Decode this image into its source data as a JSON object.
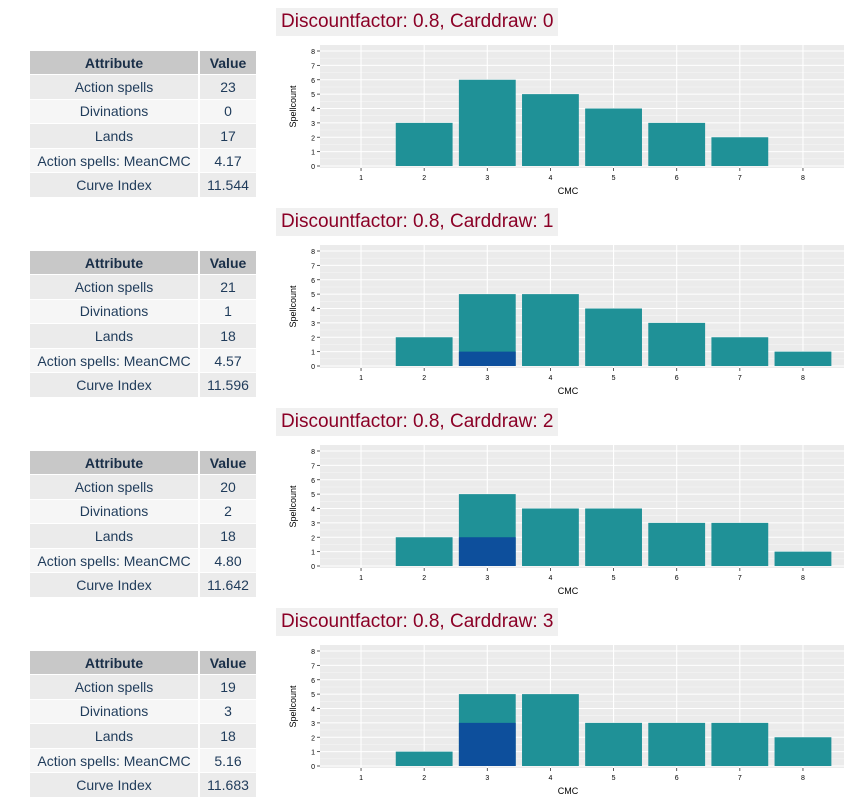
{
  "table_headers": {
    "attribute": "Attribute",
    "value": "Value"
  },
  "colors": {
    "total": "#1f9197",
    "carddraw": "#0d4f9c",
    "title": "#8b0026",
    "panel_bg": "#ebebeb"
  },
  "chart_data": [
    {
      "type": "bar",
      "title": "Discountfactor: 0.8, Carddraw: 0",
      "xlabel": "CMC",
      "ylabel": "Spellcount",
      "categories": [
        "1",
        "2",
        "3",
        "4",
        "5",
        "6",
        "7",
        "8"
      ],
      "ylim": [
        0,
        8
      ],
      "yticks": [
        "0",
        "1",
        "2",
        "3",
        "4",
        "5",
        "6",
        "7",
        "8"
      ],
      "series": [
        {
          "values": [
            0,
            3,
            6,
            5,
            4,
            3,
            2,
            0
          ]
        },
        {
          "values": [
            0,
            0,
            0,
            0,
            0,
            0,
            0,
            0
          ]
        }
      ],
      "table": [
        {
          "attribute": "Action spells",
          "value": "23"
        },
        {
          "attribute": "Divinations",
          "value": "0"
        },
        {
          "attribute": "Lands",
          "value": "17"
        },
        {
          "attribute": "Action spells: MeanCMC",
          "value": "4.17"
        },
        {
          "attribute": "Curve Index",
          "value": "11.544"
        }
      ]
    },
    {
      "type": "bar",
      "title": "Discountfactor: 0.8, Carddraw: 1",
      "xlabel": "CMC",
      "ylabel": "Spellcount",
      "categories": [
        "1",
        "2",
        "3",
        "4",
        "5",
        "6",
        "7",
        "8"
      ],
      "ylim": [
        0,
        8
      ],
      "yticks": [
        "0",
        "1",
        "2",
        "3",
        "4",
        "5",
        "6",
        "7",
        "8"
      ],
      "series": [
        {
          "values": [
            0,
            2,
            5,
            5,
            4,
            3,
            2,
            1
          ]
        },
        {
          "values": [
            0,
            0,
            1,
            0,
            0,
            0,
            0,
            0
          ]
        }
      ],
      "table": [
        {
          "attribute": "Action spells",
          "value": "21"
        },
        {
          "attribute": "Divinations",
          "value": "1"
        },
        {
          "attribute": "Lands",
          "value": "18"
        },
        {
          "attribute": "Action spells: MeanCMC",
          "value": "4.57"
        },
        {
          "attribute": "Curve Index",
          "value": "11.596"
        }
      ]
    },
    {
      "type": "bar",
      "title": "Discountfactor: 0.8, Carddraw: 2",
      "xlabel": "CMC",
      "ylabel": "Spellcount",
      "categories": [
        "1",
        "2",
        "3",
        "4",
        "5",
        "6",
        "7",
        "8"
      ],
      "ylim": [
        0,
        8
      ],
      "yticks": [
        "0",
        "1",
        "2",
        "3",
        "4",
        "5",
        "6",
        "7",
        "8"
      ],
      "series": [
        {
          "values": [
            0,
            2,
            5,
            4,
            4,
            3,
            3,
            1
          ]
        },
        {
          "values": [
            0,
            0,
            2,
            0,
            0,
            0,
            0,
            0
          ]
        }
      ],
      "table": [
        {
          "attribute": "Action spells",
          "value": "20"
        },
        {
          "attribute": "Divinations",
          "value": "2"
        },
        {
          "attribute": "Lands",
          "value": "18"
        },
        {
          "attribute": "Action spells: MeanCMC",
          "value": "4.80"
        },
        {
          "attribute": "Curve Index",
          "value": "11.642"
        }
      ]
    },
    {
      "type": "bar",
      "title": "Discountfactor: 0.8, Carddraw: 3",
      "xlabel": "CMC",
      "ylabel": "Spellcount",
      "categories": [
        "1",
        "2",
        "3",
        "4",
        "5",
        "6",
        "7",
        "8"
      ],
      "ylim": [
        0,
        8
      ],
      "yticks": [
        "0",
        "1",
        "2",
        "3",
        "4",
        "5",
        "6",
        "7",
        "8"
      ],
      "series": [
        {
          "values": [
            0,
            1,
            5,
            5,
            3,
            3,
            3,
            2
          ]
        },
        {
          "values": [
            0,
            0,
            3,
            0,
            0,
            0,
            0,
            0
          ]
        }
      ],
      "table": [
        {
          "attribute": "Action spells",
          "value": "19"
        },
        {
          "attribute": "Divinations",
          "value": "3"
        },
        {
          "attribute": "Lands",
          "value": "18"
        },
        {
          "attribute": "Action spells: MeanCMC",
          "value": "5.16"
        },
        {
          "attribute": "Curve Index",
          "value": "11.683"
        }
      ]
    }
  ]
}
